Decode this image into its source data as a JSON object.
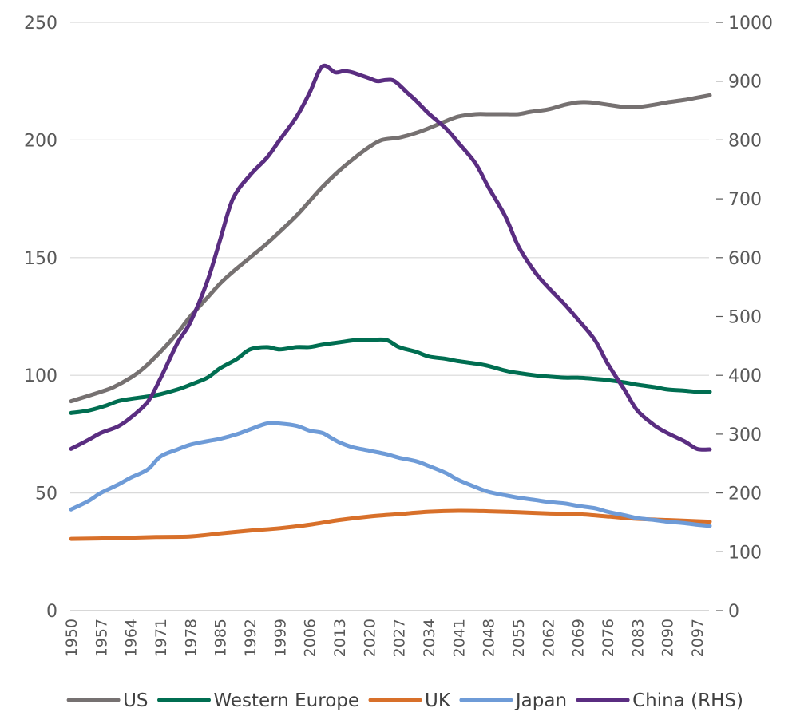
{
  "chart_data": {
    "type": "line",
    "title": "",
    "xlabel": "",
    "ylabel": "",
    "y2label": "",
    "ylim": [
      0,
      250
    ],
    "y2lim": [
      0,
      1000
    ],
    "yticks": [
      "0",
      "50",
      "100",
      "150",
      "200",
      "250"
    ],
    "y2ticks": [
      "0",
      "100",
      "200",
      "300",
      "400",
      "500",
      "600",
      "700",
      "800",
      "900",
      "1000"
    ],
    "xlim": [
      1950,
      2100
    ],
    "xticks": [
      "1950",
      "1957",
      "1964",
      "1971",
      "1978",
      "1985",
      "1992",
      "1999",
      "2006",
      "2013",
      "2020",
      "2027",
      "2034",
      "2041",
      "2048",
      "2055",
      "2062",
      "2069",
      "2076",
      "2083",
      "2090",
      "2097"
    ],
    "grid": "horizontal",
    "legend_position": "bottom",
    "series": [
      {
        "name": "US",
        "axis": "left",
        "color": "#767171",
        "x": [
          1950,
          1957,
          1960,
          1964,
          1967,
          1971,
          1975,
          1978,
          1982,
          1985,
          1988,
          1992,
          1996,
          1999,
          2003,
          2006,
          2009,
          2013,
          2017,
          2020,
          2023,
          2027,
          2031,
          2034,
          2038,
          2041,
          2045,
          2048,
          2052,
          2055,
          2058,
          2062,
          2066,
          2069,
          2072,
          2076,
          2080,
          2083,
          2087,
          2090,
          2094,
          2097,
          2100
        ],
        "values": [
          89,
          93,
          95,
          99,
          103,
          110,
          118,
          125,
          133,
          139,
          144,
          150,
          156,
          161,
          168,
          174,
          180,
          187,
          193,
          197,
          200,
          201,
          203,
          205,
          208,
          210,
          211,
          211,
          211,
          211,
          212,
          213,
          215,
          216,
          216,
          215,
          214,
          214,
          215,
          216,
          217,
          218,
          219
        ]
      },
      {
        "name": "Western Europe",
        "axis": "left",
        "color": "#006e51",
        "x": [
          1950,
          1954,
          1958,
          1961,
          1964,
          1968,
          1971,
          1975,
          1978,
          1982,
          1985,
          1989,
          1992,
          1996,
          1999,
          2003,
          2006,
          2009,
          2013,
          2017,
          2020,
          2024,
          2027,
          2031,
          2034,
          2038,
          2041,
          2045,
          2048,
          2052,
          2055,
          2059,
          2062,
          2066,
          2069,
          2073,
          2076,
          2080,
          2083,
          2087,
          2090,
          2094,
          2097,
          2100
        ],
        "values": [
          84,
          85,
          87,
          89,
          90,
          91,
          92,
          94,
          96,
          99,
          103,
          107,
          111,
          112,
          111,
          112,
          112,
          113,
          114,
          115,
          115,
          115,
          112,
          110,
          108,
          107,
          106,
          105,
          104,
          102,
          101,
          100,
          99.5,
          99,
          99,
          98.5,
          98,
          97,
          96,
          95,
          94,
          93.5,
          93,
          93
        ]
      },
      {
        "name": "UK",
        "axis": "left",
        "color": "#d8702a",
        "x": [
          1950,
          1960,
          1970,
          1978,
          1985,
          1992,
          1999,
          2006,
          2013,
          2020,
          2027,
          2034,
          2041,
          2048,
          2055,
          2062,
          2069,
          2076,
          2083,
          2090,
          2097,
          2100
        ],
        "values": [
          30.5,
          30.8,
          31.3,
          31.5,
          32.8,
          34,
          35,
          36.5,
          38.5,
          40,
          41,
          42,
          42.4,
          42.2,
          41.8,
          41.3,
          41,
          40,
          39,
          38.5,
          38,
          37.8
        ]
      },
      {
        "name": "Japan",
        "axis": "left",
        "color": "#6e9bd7",
        "x": [
          1950,
          1954,
          1957,
          1961,
          1964,
          1968,
          1971,
          1975,
          1978,
          1982,
          1985,
          1989,
          1992,
          1996,
          1999,
          2003,
          2006,
          2009,
          2011,
          2013,
          2016,
          2020,
          2024,
          2027,
          2031,
          2034,
          2038,
          2041,
          2045,
          2048,
          2052,
          2055,
          2059,
          2062,
          2066,
          2069,
          2073,
          2076,
          2080,
          2083,
          2087,
          2090,
          2094,
          2097,
          2100
        ],
        "values": [
          43,
          46.5,
          50,
          53.5,
          56.5,
          60,
          65.5,
          68.5,
          70.5,
          72,
          73,
          75,
          77,
          79.5,
          79.5,
          78.5,
          76.5,
          75.5,
          73.5,
          71.5,
          69.5,
          68,
          66.5,
          65,
          63.5,
          61.5,
          58.5,
          55.5,
          52.5,
          50.5,
          49,
          48,
          47,
          46.2,
          45.5,
          44.5,
          43.5,
          42,
          40.5,
          39.3,
          38.5,
          37.8,
          37.2,
          36.5,
          36
        ]
      },
      {
        "name": "China (RHS)",
        "axis": "right",
        "color": "#5a2d81",
        "x": [
          1950,
          1954,
          1957,
          1961,
          1964,
          1968,
          1971,
          1975,
          1978,
          1982,
          1985,
          1988,
          1992,
          1996,
          1999,
          2003,
          2006,
          2009,
          2012,
          2014,
          2016,
          2018,
          2020,
          2022,
          2024,
          2026,
          2029,
          2031,
          2034,
          2038,
          2041,
          2045,
          2048,
          2052,
          2055,
          2059,
          2062,
          2066,
          2069,
          2073,
          2076,
          2080,
          2083,
          2087,
          2090,
          2094,
          2097,
          2100
        ],
        "values": [
          275,
          290,
          302,
          313,
          328,
          355,
          395,
          455,
          490,
          560,
          630,
          700,
          740,
          770,
          800,
          840,
          880,
          925,
          915,
          917,
          915,
          910,
          905,
          900,
          902,
          900,
          880,
          867,
          845,
          820,
          795,
          760,
          720,
          670,
          620,
          575,
          550,
          520,
          495,
          460,
          420,
          375,
          340,
          315,
          302,
          288,
          275,
          274
        ]
      }
    ]
  }
}
